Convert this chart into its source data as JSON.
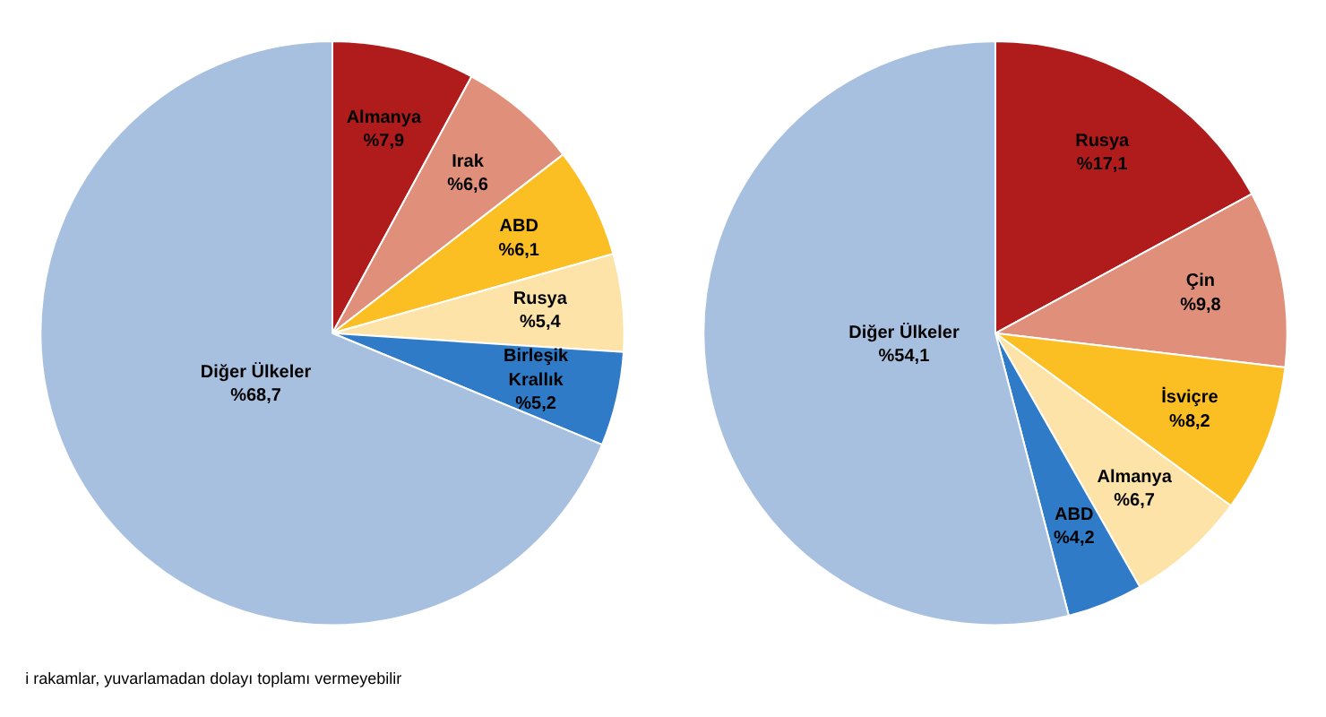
{
  "chart_data": [
    {
      "type": "pie",
      "categories": [
        "Almanya",
        "Irak",
        "ABD",
        "Rusya",
        "Birleşik Krallık",
        "Diğer Ülkeler"
      ],
      "values": [
        7.9,
        6.6,
        6.1,
        5.4,
        5.2,
        68.7
      ],
      "value_labels": [
        "%7,9",
        "%6,6",
        "%6,1",
        "%5,4",
        "%5,2",
        "%68,7"
      ],
      "colors": [
        "#b01c1c",
        "#e0907a",
        "#fbbf24",
        "#fde3a7",
        "#2f7bc8",
        "#a8c0e0"
      ],
      "annotations": [
        "i rakamlar, yuvarlamadan dolayı toplamı vermeyebilir"
      ]
    },
    {
      "type": "pie",
      "categories": [
        "Rusya",
        "Çin",
        "İsviçre",
        "Almanya",
        "ABD",
        "Diğer Ülkeler"
      ],
      "values": [
        17.1,
        9.8,
        8.2,
        6.7,
        4.2,
        54.1
      ],
      "value_labels": [
        "%17,1",
        "%9,8",
        "%8,2",
        "%6,7",
        "%4,2",
        "%54,1"
      ],
      "colors": [
        "#b01c1c",
        "#e0907a",
        "#fbbf24",
        "#fde3a7",
        "#2f7bc8",
        "#a8c0e0"
      ]
    }
  ]
}
